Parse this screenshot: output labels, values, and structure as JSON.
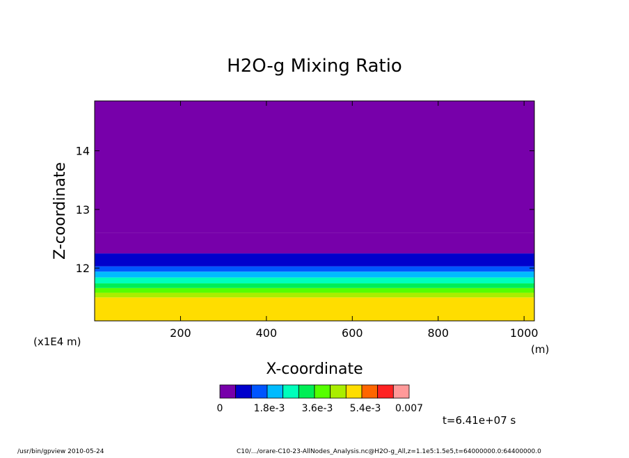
{
  "chart_data": {
    "type": "heatmap",
    "title": "H2O-g Mixing Ratio",
    "xlabel": "X-coordinate",
    "ylabel": "Z-coordinate",
    "x_unit": "(m)",
    "y_unit": "(x1E4 m)",
    "xlim": [
      0,
      1024
    ],
    "ylim": [
      11.1,
      14.85
    ],
    "x_ticks": [
      200,
      400,
      600,
      800,
      1000
    ],
    "y_ticks": [
      12,
      13,
      14
    ],
    "colorbar": {
      "colors": [
        "#7700aa",
        "#0000cc",
        "#0055ff",
        "#00bbff",
        "#00ffbb",
        "#00ee55",
        "#55ff00",
        "#aaee00",
        "#ffdd00",
        "#ff6600",
        "#ff2222",
        "#ff9999"
      ],
      "tick_labels": [
        "0",
        "1.8e-3",
        "3.6e-3",
        "5.4e-3",
        "0.007"
      ],
      "levels": [
        0,
        0.0006,
        0.0012,
        0.0018,
        0.0024,
        0.003,
        0.0036,
        0.0042,
        0.0048,
        0.0054,
        0.006,
        0.0066,
        0.007
      ]
    },
    "bands": [
      {
        "from": 0.0066,
        "to": 0.007,
        "z_low": 11.1,
        "z_high": 11.1
      },
      {
        "from": 0.006,
        "to": 0.0066,
        "z_low": 11.1,
        "z_high": 11.1
      },
      {
        "from": 0.0054,
        "to": 0.006,
        "z_low": 11.1,
        "z_high": 11.5
      },
      {
        "from": 0.0048,
        "to": 0.0054,
        "z_low": 11.5,
        "z_high": 11.58
      },
      {
        "from": 0.0042,
        "to": 0.0048,
        "z_low": 11.58,
        "z_high": 11.66
      },
      {
        "from": 0.0036,
        "to": 0.0042,
        "z_low": 11.66,
        "z_high": 11.74
      },
      {
        "from": 0.003,
        "to": 0.0036,
        "z_low": 11.74,
        "z_high": 11.84
      },
      {
        "from": 0.0024,
        "to": 0.003,
        "z_low": 11.84,
        "z_high": 11.94
      },
      {
        "from": 0.0018,
        "to": 0.0024,
        "z_low": 11.94,
        "z_high": 12.03
      },
      {
        "from": 0.0012,
        "to": 0.0018,
        "z_low": 12.03,
        "z_high": 12.25
      },
      {
        "from": 0.0006,
        "to": 0.0012,
        "z_low": 12.25,
        "z_high": 12.6
      },
      {
        "from": 0,
        "to": 0.0006,
        "z_low": 12.6,
        "z_high": 14.85
      }
    ],
    "time_label": "t=6.41e+07 s"
  },
  "footer": {
    "program": "/usr/bin/gpview  2010-05-24",
    "source": "C10/.../orare-C10-23-AllNodes_Analysis.nc@H2O-g_All,z=1.1e5:1.5e5,t=64000000.0:64400000.0"
  }
}
